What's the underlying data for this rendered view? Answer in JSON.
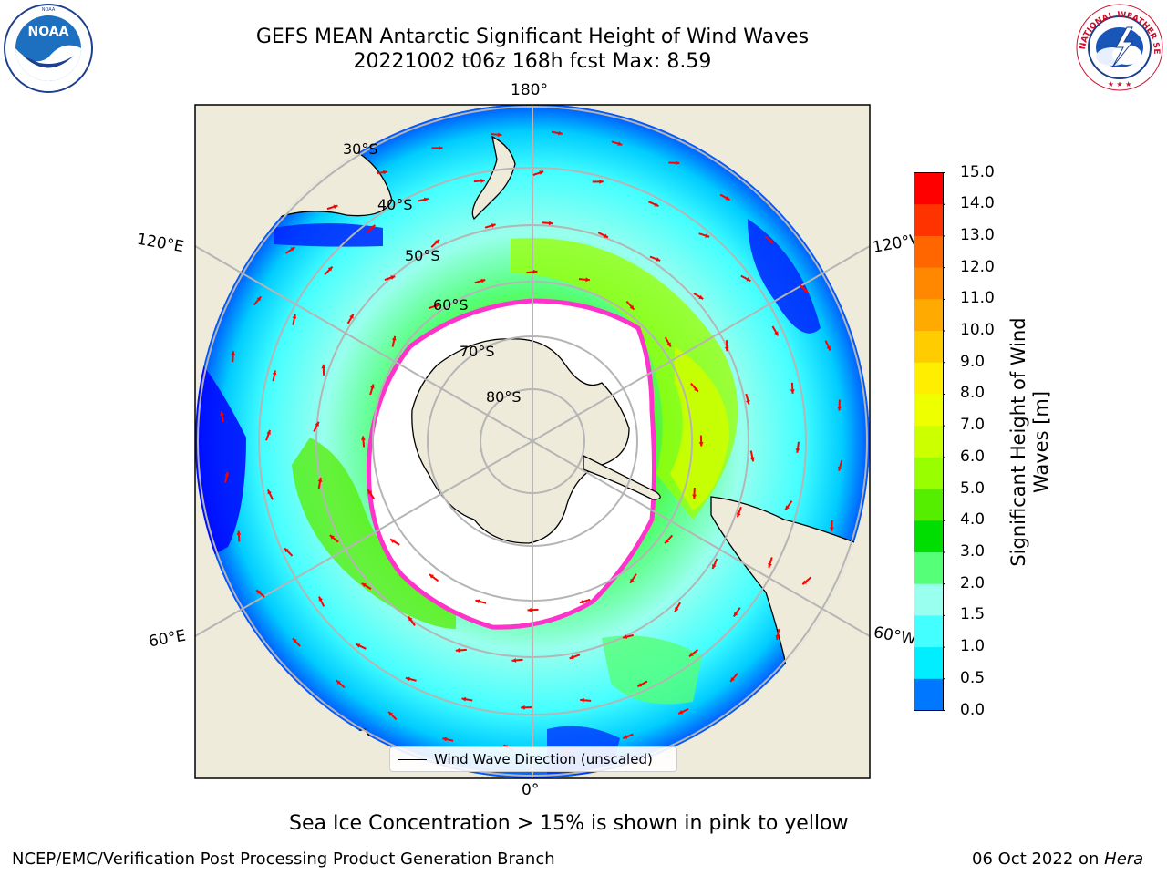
{
  "header": {
    "title_line1": "GEFS MEAN Antarctic Significant Height of Wind Waves",
    "title_line2": "20221002 t06z 168h fcst   Max: 8.59"
  },
  "logos": {
    "left": {
      "name": "noaa-logo",
      "text": "NOAA",
      "ring_text": "NATIONAL OCEANIC AND ATMOSPHERIC ADMINISTRATION · U.S. DEPARTMENT OF COMMERCE"
    },
    "right": {
      "name": "nws-logo",
      "ring_text": "NATIONAL WEATHER SERVICE"
    }
  },
  "map": {
    "lon_labels": {
      "top": "180°",
      "bottom": "0°",
      "left_upper": "120°E",
      "left_lower": "60°E",
      "right_upper": "120°W",
      "right_lower": "60°W"
    },
    "lat_labels": [
      "30°S",
      "40°S",
      "50°S",
      "60°S",
      "70°S",
      "80°S"
    ],
    "legend_label": "Wind Wave Direction (unscaled)",
    "colors": {
      "land": "#eeebda",
      "ice_edge": "#ff33cc",
      "arrow": "#ff0000",
      "grid": "#b5b5b5"
    }
  },
  "colorbar": {
    "label_line1": "Significant Height of Wind",
    "label_line2": "Waves [m]",
    "ticks": [
      "15.0",
      "14.0",
      "13.0",
      "12.0",
      "11.0",
      "10.0",
      "9.0",
      "8.0",
      "7.0",
      "6.0",
      "5.0",
      "4.0",
      "3.0",
      "2.0",
      "1.5",
      "1.0",
      "0.5",
      "0.0"
    ],
    "colors": [
      "#ff0000",
      "#ff3300",
      "#ff6600",
      "#ff8800",
      "#ffaa00",
      "#ffcc00",
      "#ffee00",
      "#eeff00",
      "#ccff00",
      "#99ff00",
      "#55ee00",
      "#00dd00",
      "#55ff77",
      "#99ffee",
      "#44ffff",
      "#00eeff",
      "#0077ff",
      "#0000ff"
    ]
  },
  "caption": "Sea Ice Concentration > 15% is shown in pink to yellow",
  "footer": {
    "left": "NCEP/EMC/Verification Post Processing Product Generation Branch",
    "right_prefix": "06 Oct 2022 on ",
    "right_italic": "Hera"
  }
}
